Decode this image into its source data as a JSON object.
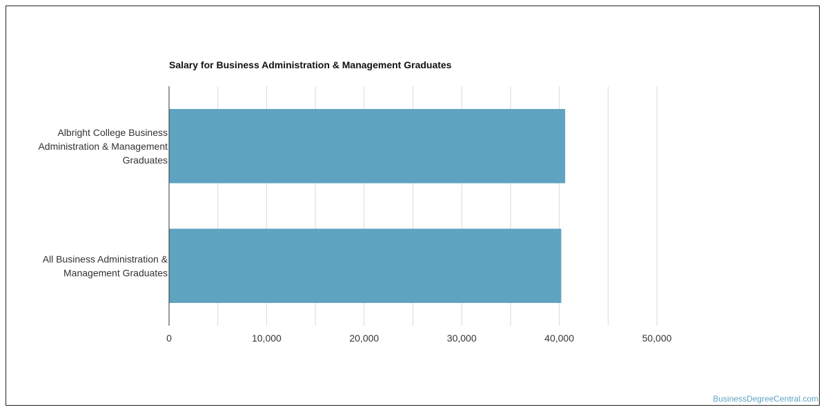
{
  "chart_data": {
    "type": "bar",
    "orientation": "horizontal",
    "title": "Salary for Business Administration & Management Graduates",
    "categories": [
      "Albright College Business Administration & Management Graduates",
      "All Business Administration & Management Graduates"
    ],
    "category_label_lines": [
      [
        "Albright College Business",
        "Administration & Management",
        "Graduates"
      ],
      [
        "All Business Administration &",
        "Management Graduates"
      ]
    ],
    "values": [
      40600,
      40200
    ],
    "xlim": [
      0,
      50000
    ],
    "xticks": [
      0,
      10000,
      20000,
      30000,
      40000,
      50000
    ],
    "xtick_labels": [
      "0",
      "10,000",
      "20,000",
      "30,000",
      "40,000",
      "50,000"
    ],
    "grid": true,
    "legend": "none",
    "bar_color": "#5ea3c0",
    "grid_color": "#d9d9d9"
  },
  "watermark": "BusinessDegreeCentral.com"
}
